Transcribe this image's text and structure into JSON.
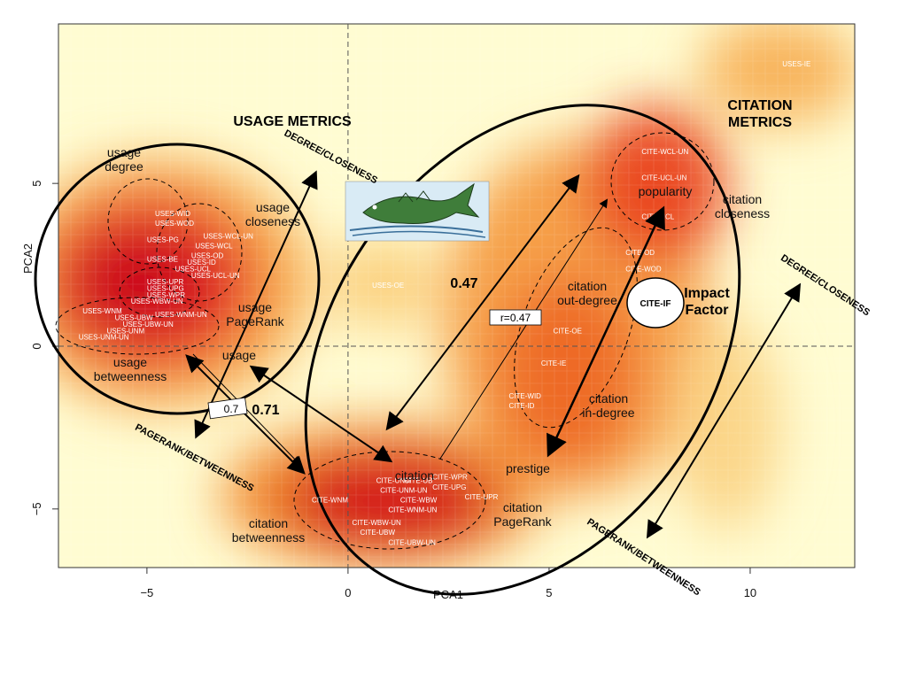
{
  "chart_data": {
    "type": "scatter",
    "xlabel": "PCA1",
    "ylabel": "PCA2",
    "xlim": [
      -7.2,
      12.6
    ],
    "ylim": [
      -6.8,
      9.9
    ],
    "x_ticks": [
      -5,
      0,
      5,
      10
    ],
    "y_ticks": [
      -5,
      0,
      5
    ],
    "reference_lines": {
      "x": 0,
      "y": 0
    },
    "background": "heatmap density of metric points (red = dense, yellow = sparse)",
    "points": [
      {
        "label": "USES-WID",
        "x": -4.8,
        "y": 4.0
      },
      {
        "label": "USES-WOD",
        "x": -4.8,
        "y": 3.7
      },
      {
        "label": "USES-PG",
        "x": -5.0,
        "y": 3.2
      },
      {
        "label": "USES-WCL-UN",
        "x": -3.6,
        "y": 3.3
      },
      {
        "label": "USES-WCL",
        "x": -3.8,
        "y": 3.0
      },
      {
        "label": "USES-BE",
        "x": -5.0,
        "y": 2.6
      },
      {
        "label": "USES-OD",
        "x": -3.9,
        "y": 2.7
      },
      {
        "label": "USES-ID",
        "x": -4.0,
        "y": 2.5
      },
      {
        "label": "USES-UCL",
        "x": -4.3,
        "y": 2.3
      },
      {
        "label": "USES-UCL-UN",
        "x": -3.9,
        "y": 2.1
      },
      {
        "label": "USES-UPR",
        "x": -5.0,
        "y": 1.9
      },
      {
        "label": "USES-UPG",
        "x": -5.0,
        "y": 1.7
      },
      {
        "label": "USES-WPR",
        "x": -5.0,
        "y": 1.5
      },
      {
        "label": "USES-WBW-UN",
        "x": -5.4,
        "y": 1.3
      },
      {
        "label": "USES-WNM",
        "x": -6.6,
        "y": 1.0
      },
      {
        "label": "USES-UBW",
        "x": -5.8,
        "y": 0.8
      },
      {
        "label": "USES-UBW-UN",
        "x": -5.6,
        "y": 0.6
      },
      {
        "label": "USES-UNM",
        "x": -6.0,
        "y": 0.4
      },
      {
        "label": "USES-UNM-UN",
        "x": -6.7,
        "y": 0.2
      },
      {
        "label": "USES-WNM-UN",
        "x": -4.8,
        "y": 0.9
      },
      {
        "label": "USES-OE",
        "x": 0.6,
        "y": 1.8
      },
      {
        "label": "USES-IE",
        "x": 10.8,
        "y": 8.6
      },
      {
        "label": "CITE-WCL-UN",
        "x": 7.3,
        "y": 5.9
      },
      {
        "label": "CITE-UCL-UN",
        "x": 7.3,
        "y": 5.1
      },
      {
        "label": "CITE-UCL",
        "x": 7.3,
        "y": 3.9
      },
      {
        "label": "CITE-OD",
        "x": 6.9,
        "y": 2.8
      },
      {
        "label": "CITE-WOD",
        "x": 6.9,
        "y": 2.3
      },
      {
        "label": "CITE-OE",
        "x": 5.1,
        "y": 0.4
      },
      {
        "label": "CITE-IE",
        "x": 4.8,
        "y": -0.6
      },
      {
        "label": "CITE-WID",
        "x": 4.0,
        "y": -1.6
      },
      {
        "label": "CITE-ID",
        "x": 4.0,
        "y": -1.9
      },
      {
        "label": "CITE-WPR",
        "x": 2.1,
        "y": -4.1
      },
      {
        "label": "CITE-UPG",
        "x": 2.1,
        "y": -4.4
      },
      {
        "label": "CITE-UPR",
        "x": 2.9,
        "y": -4.7
      },
      {
        "label": "CITE-UNM",
        "x": 0.7,
        "y": -4.2
      },
      {
        "label": "CITE-UB",
        "x": 1.4,
        "y": -4.2
      },
      {
        "label": "CITE-UNM-UN",
        "x": 0.8,
        "y": -4.5
      },
      {
        "label": "CITE-WBW",
        "x": 1.3,
        "y": -4.8
      },
      {
        "label": "CITE-WNM",
        "x": -0.9,
        "y": -4.8
      },
      {
        "label": "CITE-WNM-UN",
        "x": 1.0,
        "y": -5.1
      },
      {
        "label": "CITE-WBW-UN",
        "x": 0.1,
        "y": -5.5
      },
      {
        "label": "CITE-UBW",
        "x": 0.3,
        "y": -5.8
      },
      {
        "label": "CITE-UBW-UN",
        "x": 1.0,
        "y": -6.1
      }
    ],
    "annotations": {
      "usage_metrics": "USAGE METRICS",
      "citation_metrics": "CITATION\nMETRICS",
      "usage_degree": "usage\ndegree",
      "usage_closeness": "usage\ncloseness",
      "usage_pagerank": "usage\nPageRank",
      "usage_betweenness": "usage\nbetweenness",
      "usage": "usage",
      "citation": "citation",
      "citation_betweenness": "citation\nbetweenness",
      "citation_pagerank": "citation\nPageRank",
      "prestige": "prestige",
      "citation_in_degree": "citation\nin-degree",
      "citation_out_degree": "citation\nout-degree",
      "popularity": "popularity",
      "citation_closeness": "citation\ncloseness",
      "impact_factor": "Impact\nFactor",
      "cite_if": "CITE-IF",
      "degree_closeness": "DEGREE/CLOSENESS",
      "pagerank_betweenness": "PAGERANK/BETWEENNESS",
      "corr_047": "0.47",
      "r_047": "r=0.47",
      "corr_071": "0.71",
      "corr_071_partial": "0.7"
    }
  },
  "colors": {
    "density_high": "#d90f1f",
    "density_mid": "#f26b1c",
    "density_low": "#fde79a",
    "density_none": "#fffcd2"
  },
  "icons": {
    "fish_image": "sea-monster-fish-illustration"
  }
}
